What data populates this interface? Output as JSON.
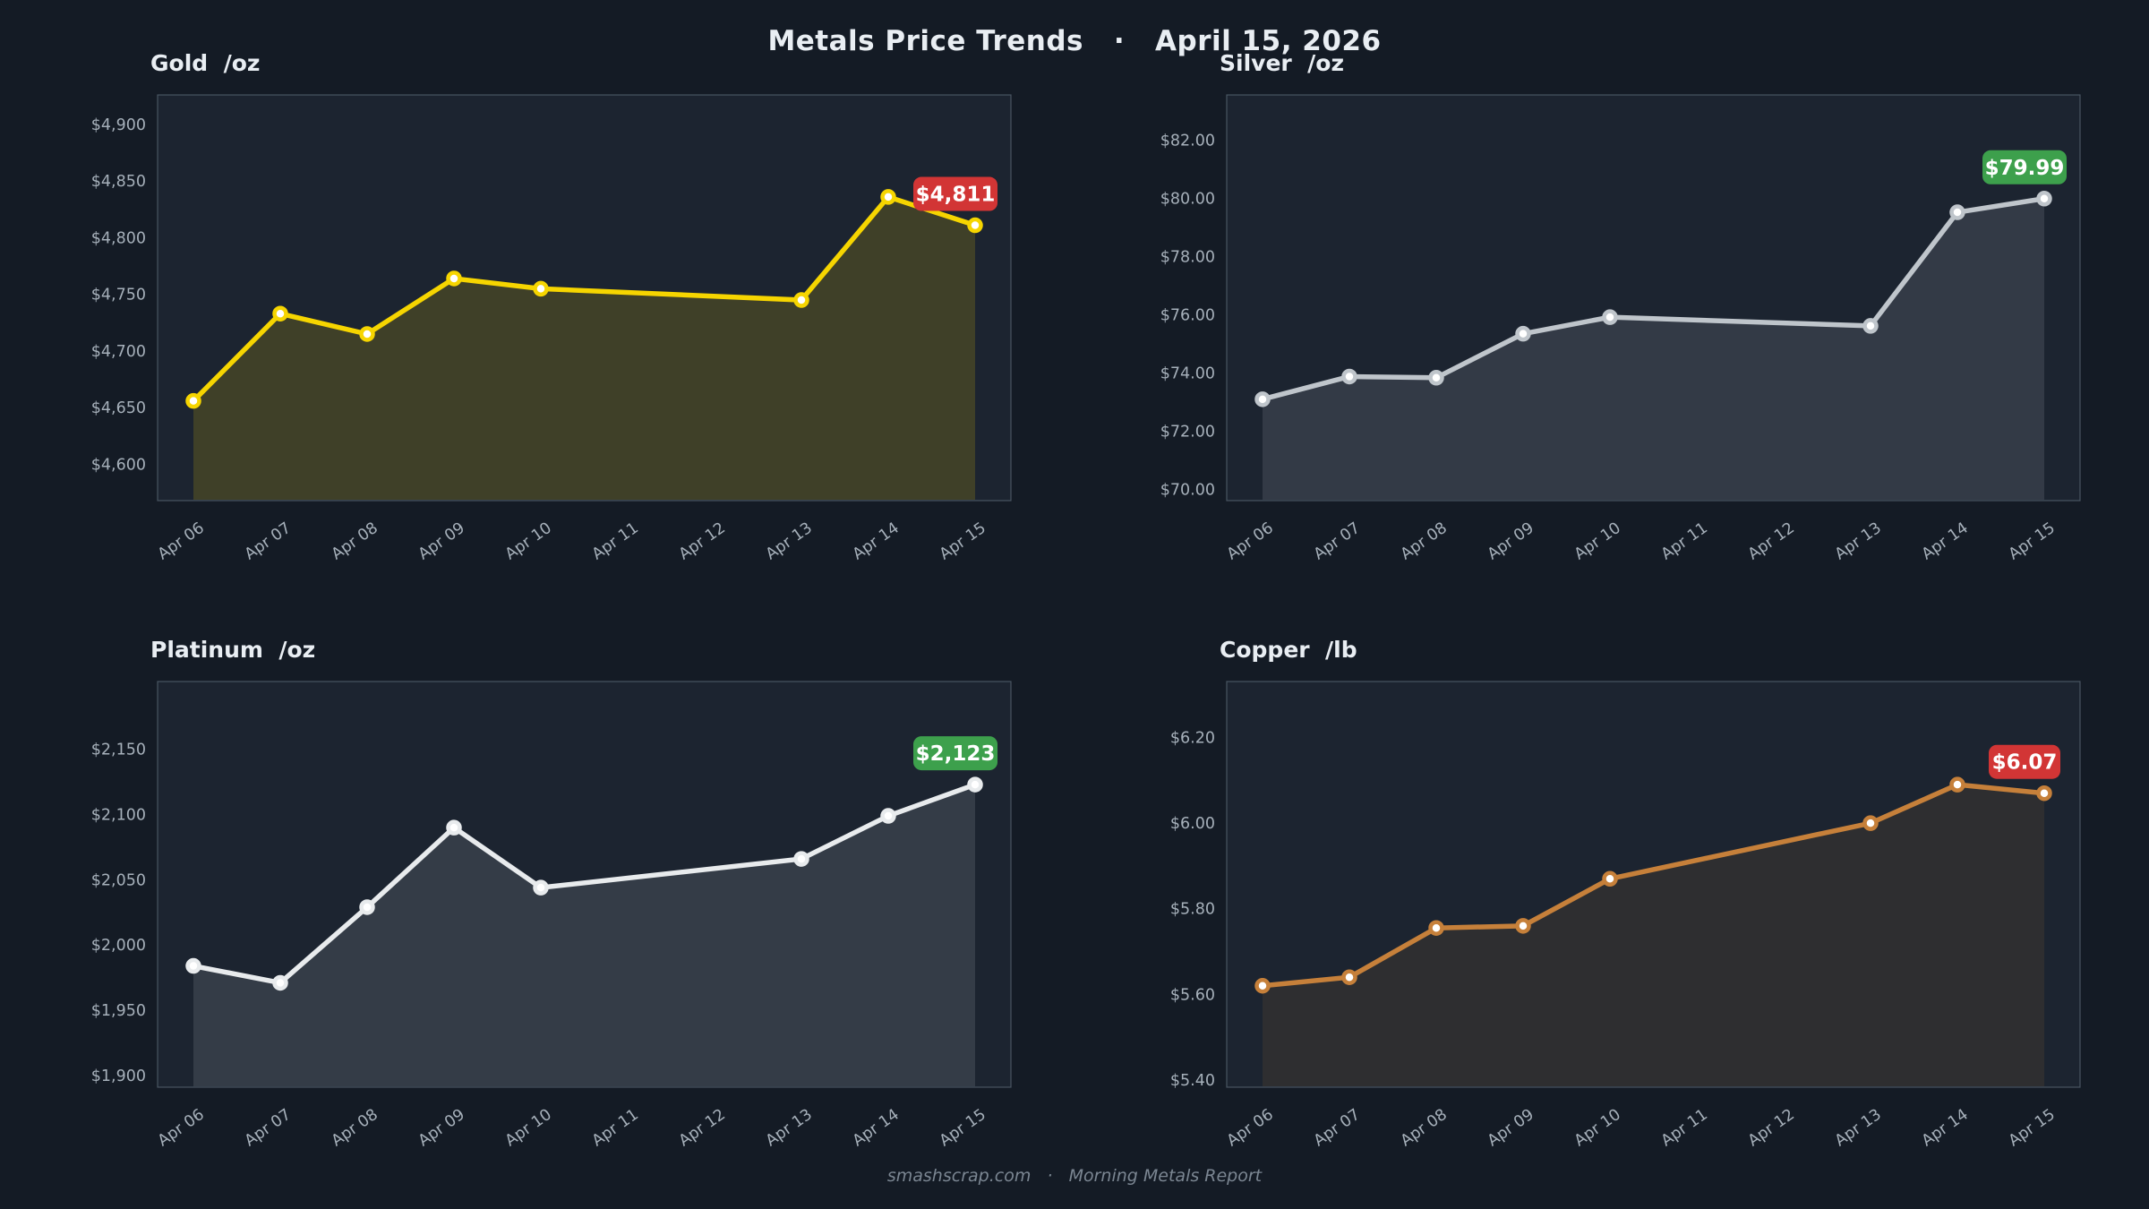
{
  "page": {
    "title": "Metals Price Trends   ·   April 15, 2026",
    "footer": "smashscrap.com   ·   Morning Metals Report",
    "background": "#141b25",
    "plot_background": "#1c2430",
    "plot_border": "#5a6874",
    "axis_label_color": "#a6b0ba",
    "up_badge_color": "#3da04c",
    "down_badge_color": "#d23535"
  },
  "chart_data": [
    {
      "id": "gold",
      "type": "area",
      "title": "Gold  /oz",
      "xlabel": "",
      "ylabel": "",
      "grid": false,
      "legend": false,
      "categories": [
        "Apr 06",
        "Apr 07",
        "Apr 08",
        "Apr 09",
        "Apr 10",
        "Apr 11",
        "Apr 12",
        "Apr 13",
        "Apr 14",
        "Apr 15"
      ],
      "x_indices": [
        0,
        1,
        2,
        3,
        4,
        7,
        8,
        9
      ],
      "values": [
        4656,
        4733,
        4715,
        4764,
        4755,
        4745,
        4836,
        4811
      ],
      "ylim": [
        4568,
        4926
      ],
      "yticks": [
        {
          "v": 4900,
          "t": "$4,900"
        },
        {
          "v": 4850,
          "t": "$4,850"
        },
        {
          "v": 4800,
          "t": "$4,800"
        },
        {
          "v": 4750,
          "t": "$4,750"
        },
        {
          "v": 4700,
          "t": "$4,700"
        },
        {
          "v": 4650,
          "t": "$4,650"
        },
        {
          "v": 4600,
          "t": "$4,600"
        }
      ],
      "line_color": "#f6d500",
      "fill_opacity": 0.16,
      "badge": {
        "text": "$4,811",
        "color": "#d23535"
      }
    },
    {
      "id": "silver",
      "type": "area",
      "title": "Silver  /oz",
      "xlabel": "",
      "ylabel": "",
      "grid": false,
      "legend": false,
      "categories": [
        "Apr 06",
        "Apr 07",
        "Apr 08",
        "Apr 09",
        "Apr 10",
        "Apr 11",
        "Apr 12",
        "Apr 13",
        "Apr 14",
        "Apr 15"
      ],
      "x_indices": [
        0,
        1,
        2,
        3,
        4,
        7,
        8,
        9
      ],
      "values": [
        73.1,
        73.88,
        73.84,
        75.35,
        75.92,
        75.62,
        79.52,
        79.99
      ],
      "ylim": [
        69.62,
        83.55
      ],
      "yticks": [
        {
          "v": 82,
          "t": "$82.00"
        },
        {
          "v": 80,
          "t": "$80.00"
        },
        {
          "v": 78,
          "t": "$78.00"
        },
        {
          "v": 76,
          "t": "$76.00"
        },
        {
          "v": 74,
          "t": "$74.00"
        },
        {
          "v": 72,
          "t": "$72.00"
        },
        {
          "v": 70,
          "t": "$70.00"
        }
      ],
      "line_color": "#bfc5cb",
      "fill_opacity": 0.14,
      "badge": {
        "text": "$79.99",
        "color": "#3da04c"
      }
    },
    {
      "id": "platinum",
      "type": "area",
      "title": "Platinum  /oz",
      "xlabel": "",
      "ylabel": "",
      "grid": false,
      "legend": false,
      "categories": [
        "Apr 06",
        "Apr 07",
        "Apr 08",
        "Apr 09",
        "Apr 10",
        "Apr 11",
        "Apr 12",
        "Apr 13",
        "Apr 14",
        "Apr 15"
      ],
      "x_indices": [
        0,
        1,
        2,
        3,
        4,
        7,
        8,
        9
      ],
      "values": [
        1984,
        1971,
        2029,
        2090,
        2044,
        2066,
        2099,
        2123
      ],
      "ylim": [
        1891,
        2202
      ],
      "yticks": [
        {
          "v": 2150,
          "t": "$2,150"
        },
        {
          "v": 2100,
          "t": "$2,100"
        },
        {
          "v": 2050,
          "t": "$2,050"
        },
        {
          "v": 2000,
          "t": "$2,000"
        },
        {
          "v": 1950,
          "t": "$1,950"
        },
        {
          "v": 1900,
          "t": "$1,900"
        }
      ],
      "line_color": "#e8ebed",
      "fill_opacity": 0.12,
      "badge": {
        "text": "$2,123",
        "color": "#3da04c"
      }
    },
    {
      "id": "copper",
      "type": "area",
      "title": "Copper  /lb",
      "xlabel": "",
      "ylabel": "",
      "grid": false,
      "legend": false,
      "categories": [
        "Apr 06",
        "Apr 07",
        "Apr 08",
        "Apr 09",
        "Apr 10",
        "Apr 11",
        "Apr 12",
        "Apr 13",
        "Apr 14",
        "Apr 15"
      ],
      "x_indices": [
        0,
        1,
        2,
        3,
        4,
        7,
        8,
        9
      ],
      "values": [
        5.62,
        5.64,
        5.755,
        5.76,
        5.87,
        6.0,
        6.09,
        6.07
      ],
      "ylim": [
        5.383,
        6.331
      ],
      "yticks": [
        {
          "v": 6.2,
          "t": "$6.20"
        },
        {
          "v": 6.0,
          "t": "$6.00"
        },
        {
          "v": 5.8,
          "t": "$5.80"
        },
        {
          "v": 5.6,
          "t": "$5.60"
        },
        {
          "v": 5.4,
          "t": "$5.40"
        }
      ],
      "line_color": "#c6803a",
      "fill_opacity": 0.11,
      "badge": {
        "text": "$6.07",
        "color": "#d23535"
      }
    }
  ]
}
